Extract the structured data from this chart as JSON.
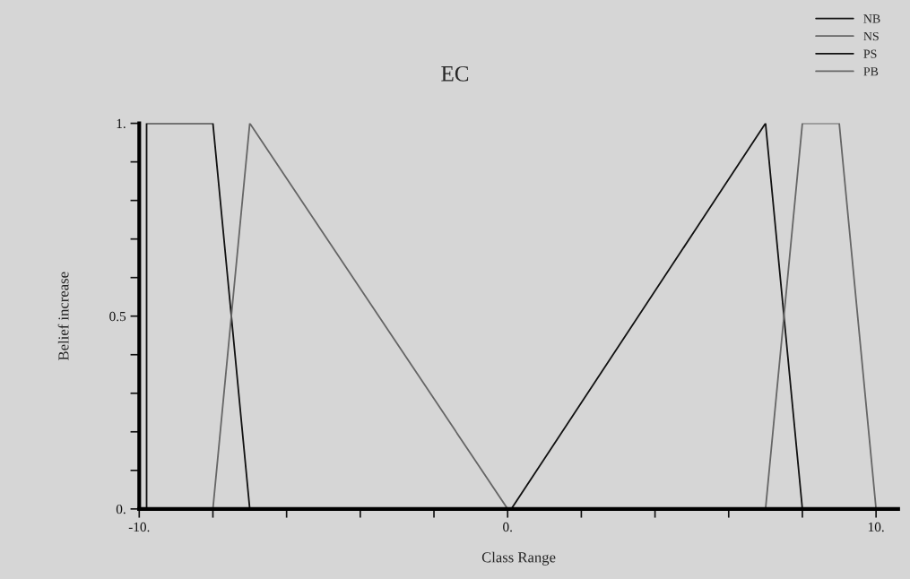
{
  "chart_data": {
    "type": "line",
    "title": "EC",
    "xlabel": "Class Range",
    "ylabel": "Belief increase",
    "series": [
      {
        "name": "NB",
        "color": "#111111",
        "x": [
          -9.8,
          -9.8,
          -8,
          -7
        ],
        "values": [
          0,
          1,
          1,
          0
        ]
      },
      {
        "name": "NS",
        "color": "#666666",
        "x": [
          -8,
          -7,
          0
        ],
        "values": [
          0,
          1,
          0
        ]
      },
      {
        "name": "PS",
        "color": "#111111",
        "x": [
          0.1,
          7,
          8
        ],
        "values": [
          0,
          1,
          0
        ]
      },
      {
        "name": "PB",
        "color": "#666666",
        "x": [
          7,
          8,
          9,
          10
        ],
        "values": [
          0,
          1,
          1,
          0
        ]
      }
    ],
    "xlim": [
      -10,
      10.6
    ],
    "ylim": [
      0,
      1
    ],
    "xticks": [
      {
        "value": -10,
        "label": "-10."
      },
      {
        "value": -8,
        "label": null
      },
      {
        "value": -6,
        "label": null
      },
      {
        "value": -4,
        "label": null
      },
      {
        "value": -2,
        "label": null
      },
      {
        "value": 0,
        "label": "0."
      },
      {
        "value": 2,
        "label": null
      },
      {
        "value": 4,
        "label": null
      },
      {
        "value": 6,
        "label": null
      },
      {
        "value": 8,
        "label": null
      },
      {
        "value": 10,
        "label": "10."
      }
    ],
    "yticks": [
      {
        "value": 0,
        "label": "0."
      },
      {
        "value": 0.1,
        "label": null
      },
      {
        "value": 0.2,
        "label": null
      },
      {
        "value": 0.3,
        "label": null
      },
      {
        "value": 0.4,
        "label": null
      },
      {
        "value": 0.5,
        "label": "0.5"
      },
      {
        "value": 0.6,
        "label": null
      },
      {
        "value": 0.7,
        "label": null
      },
      {
        "value": 0.8,
        "label": null
      },
      {
        "value": 0.9,
        "label": null
      },
      {
        "value": 1,
        "label": "1."
      }
    ],
    "grid": false,
    "legend": "top right",
    "marker": "none",
    "line_style": "solid"
  }
}
